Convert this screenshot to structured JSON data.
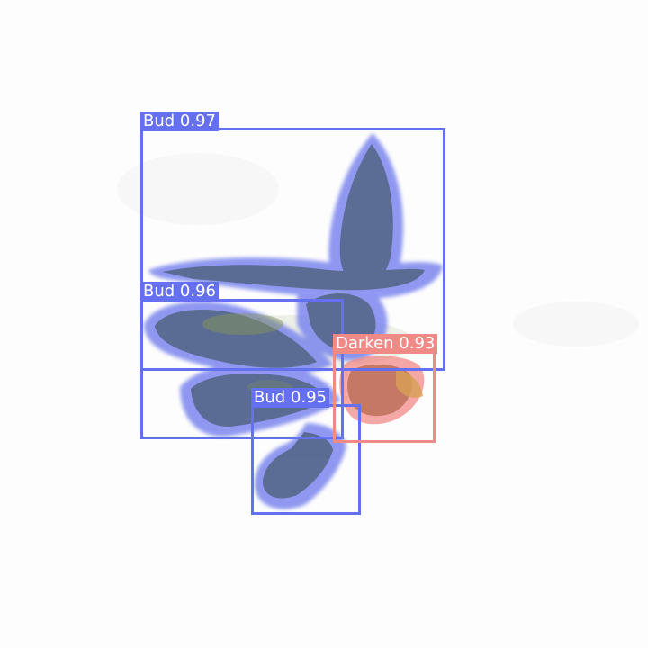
{
  "detections": [
    {
      "label": "Bud 0.97",
      "class_name": "Bud",
      "confidence": 0.97,
      "color": "#6470f0"
    },
    {
      "label": "Bud 0.96",
      "class_name": "Bud",
      "confidence": 0.96,
      "color": "#6470f0"
    },
    {
      "label": "Bud 0.95",
      "class_name": "Bud",
      "confidence": 0.95,
      "color": "#6470f0"
    },
    {
      "label": "Darken 0.93",
      "class_name": "Darken",
      "confidence": 0.93,
      "color": "#f08a86"
    }
  ],
  "colors": {
    "background": "#fdfdfd",
    "bud_mask": "#6470f0",
    "darken_mask": "#f08a86"
  }
}
